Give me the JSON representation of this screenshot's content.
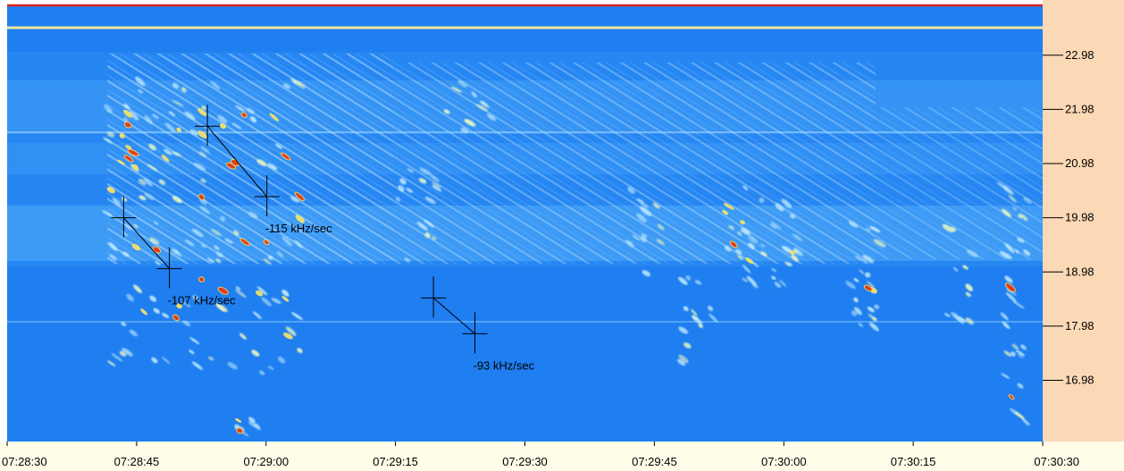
{
  "chart_data": {
    "type": "heatmap",
    "title": "",
    "xlabel": "",
    "ylabel": "",
    "x_tick_labels": [
      "07:28:30",
      "07:28:45",
      "07:29:00",
      "07:29:15",
      "07:29:30",
      "07:29:45",
      "07:30:00",
      "07:30:15",
      "07:30:30"
    ],
    "x_tick_seconds": [
      0,
      15,
      30,
      45,
      60,
      75,
      90,
      105,
      120
    ],
    "y_tick_labels": [
      "22.98",
      "21.98",
      "20.98",
      "19.98",
      "18.98",
      "17.98",
      "16.98"
    ],
    "y_ticks_khz": [
      22.98,
      21.98,
      20.98,
      19.98,
      18.98,
      17.98,
      16.98
    ],
    "xlim_seconds": [
      0,
      120
    ],
    "ylim_khz": [
      15.85,
      23.9
    ],
    "colors": {
      "background": "#1f7ef0",
      "axis_panel": "#fcd9b6",
      "top_line": "#d92424",
      "marker": "#000000",
      "low": "#1f7ef0",
      "mid": "#8fd3f8",
      "high": "#f2e06a",
      "peak": "#e83a18"
    },
    "annotations": [
      {
        "label": "-107 kHz/sec",
        "start": {
          "t": 13.5,
          "khz": 19.98
        },
        "end": {
          "t": 18.8,
          "khz": 19.04
        }
      },
      {
        "label": "-115 kHz/sec",
        "start": {
          "t": 23.2,
          "khz": 21.67
        },
        "end": {
          "t": 30.1,
          "khz": 20.37
        }
      },
      {
        "label": "-93 kHz/sec",
        "start": {
          "t": 49.4,
          "khz": 18.5
        },
        "end": {
          "t": 54.2,
          "khz": 17.84
        }
      }
    ]
  }
}
